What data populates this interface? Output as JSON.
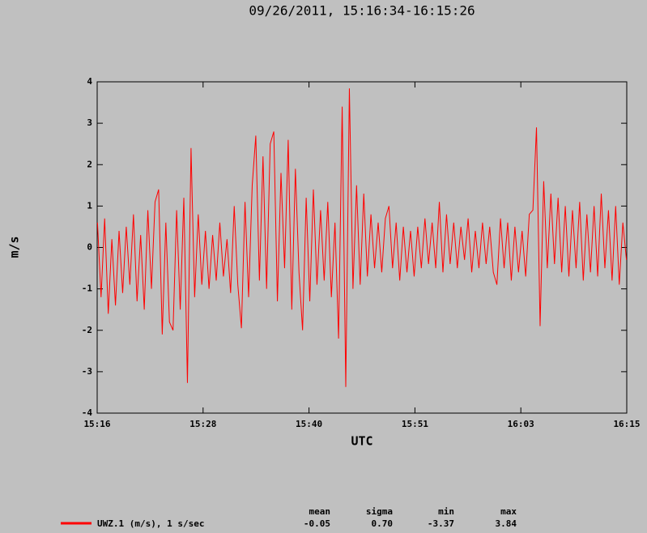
{
  "chart_data": {
    "type": "line",
    "title": "09/26/2011, 15:16:34-16:15:26",
    "xlabel": "UTC",
    "ylabel": "m/s",
    "x": [
      916.6,
      917,
      917.4,
      917.8,
      918.2,
      918.6,
      919,
      919.4,
      919.8,
      920.2,
      920.6,
      921,
      921.4,
      921.8,
      922.2,
      922.6,
      923,
      923.4,
      923.8,
      924.2,
      924.6,
      925,
      925.4,
      925.8,
      926.2,
      926.6,
      927,
      927.4,
      927.8,
      928.2,
      928.6,
      929,
      929.4,
      929.8,
      930.2,
      930.6,
      931,
      931.4,
      931.8,
      932.2,
      932.6,
      933,
      933.4,
      933.8,
      934.2,
      934.6,
      935,
      935.4,
      935.8,
      936.2,
      936.6,
      937,
      937.4,
      937.8,
      938.2,
      938.6,
      939,
      939.4,
      939.8,
      940.2,
      940.6,
      941,
      941.4,
      941.8,
      942.2,
      942.6,
      943,
      943.4,
      943.8,
      944.2,
      944.6,
      945,
      945.4,
      945.8,
      946.2,
      946.6,
      947,
      947.4,
      947.8,
      948.2,
      948.6,
      949,
      949.4,
      949.8,
      950.2,
      950.6,
      951,
      951.4,
      951.8,
      952.2,
      952.6,
      953,
      953.4,
      953.8,
      954.2,
      954.6,
      955,
      955.4,
      955.8,
      956.2,
      956.6,
      957,
      957.4,
      957.8,
      958.2,
      958.6,
      959,
      959.4,
      959.8,
      960.2,
      960.6,
      961,
      961.4,
      961.8,
      962.2,
      962.6,
      963,
      963.4,
      963.8,
      964.2,
      964.6,
      965,
      965.4,
      965.8,
      966.2,
      966.6,
      967,
      967.4,
      967.8,
      968.2,
      968.6,
      969,
      969.4,
      969.8,
      970.2,
      970.6,
      971,
      971.4,
      971.8,
      972.2,
      972.6,
      973,
      973.4,
      973.8,
      974.2,
      974.6,
      975,
      975.4
    ],
    "series": [
      {
        "name": "UWZ.1 (m/s), 1 s/sec",
        "color": "#ff0000",
        "values": [
          0.6,
          -1.2,
          0.7,
          -1.6,
          0.2,
          -1.4,
          0.4,
          -1.1,
          0.5,
          -0.9,
          0.8,
          -1.3,
          0.3,
          -1.5,
          0.9,
          -1.0,
          1.1,
          1.4,
          -2.1,
          0.6,
          -1.8,
          -2.0,
          0.9,
          -1.5,
          1.2,
          -3.27,
          2.4,
          -1.2,
          0.8,
          -0.9,
          0.4,
          -1.0,
          0.3,
          -0.8,
          0.6,
          -0.7,
          0.2,
          -1.1,
          1.0,
          -0.9,
          -1.95,
          1.1,
          -1.2,
          1.5,
          2.7,
          -0.8,
          2.2,
          -1.0,
          2.5,
          2.8,
          -1.3,
          1.8,
          -0.5,
          2.6,
          -1.5,
          1.9,
          -0.6,
          -2.0,
          1.2,
          -1.3,
          1.4,
          -0.9,
          0.9,
          -0.8,
          1.1,
          -1.2,
          0.6,
          -2.2,
          3.4,
          -3.37,
          3.84,
          -1.0,
          1.5,
          -0.9,
          1.3,
          -0.7,
          0.8,
          -0.5,
          0.6,
          -0.6,
          0.7,
          1.0,
          -0.5,
          0.6,
          -0.8,
          0.5,
          -0.6,
          0.4,
          -0.7,
          0.5,
          -0.5,
          0.7,
          -0.4,
          0.6,
          -0.5,
          1.1,
          -0.6,
          0.8,
          -0.4,
          0.6,
          -0.5,
          0.5,
          -0.3,
          0.7,
          -0.6,
          0.4,
          -0.5,
          0.6,
          -0.4,
          0.5,
          -0.6,
          -0.9,
          0.7,
          -0.5,
          0.6,
          -0.8,
          0.5,
          -0.6,
          0.4,
          -0.7,
          0.8,
          0.9,
          2.9,
          -1.9,
          1.6,
          -0.5,
          1.3,
          -0.4,
          1.2,
          -0.6,
          1.0,
          -0.7,
          0.9,
          -0.5,
          1.1,
          -0.8,
          0.8,
          -0.6,
          1.0,
          -0.7,
          1.3,
          -0.5,
          0.9,
          -0.8,
          1.0,
          -0.9,
          0.6,
          -0.3
        ]
      }
    ],
    "xlim": [
      916.567,
      975.433
    ],
    "xticks": [
      {
        "value": 916.567,
        "label": "15:16"
      },
      {
        "value": 928.34,
        "label": "15:28"
      },
      {
        "value": 940.113,
        "label": "15:40"
      },
      {
        "value": 951.887,
        "label": "15:51"
      },
      {
        "value": 963.66,
        "label": "16:03"
      },
      {
        "value": 975.433,
        "label": "16:15"
      }
    ],
    "ylim": [
      -4,
      4
    ],
    "yticks": [
      -4,
      -3,
      -2,
      -1,
      0,
      1,
      2,
      3,
      4
    ],
    "stats": {
      "headers": [
        "mean",
        "sigma",
        "min",
        "max"
      ],
      "values": [
        -0.05,
        0.7,
        -3.37,
        3.84
      ],
      "value_labels": [
        "-0.05",
        "0.70",
        "-3.37",
        "3.84"
      ]
    }
  }
}
